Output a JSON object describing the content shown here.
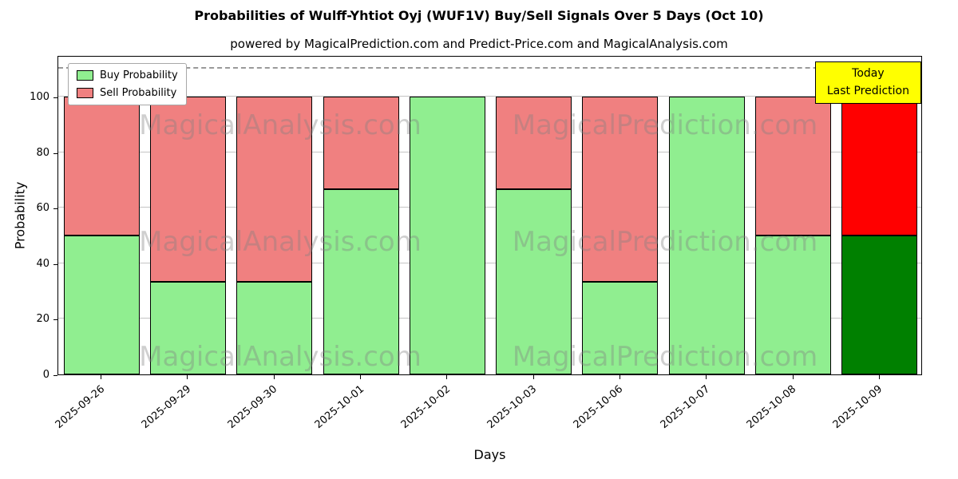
{
  "chart_data": {
    "type": "bar",
    "stacked": true,
    "title": "Probabilities of Wulff-Yhtiot Oyj (WUF1V) Buy/Sell Signals Over 5 Days (Oct 10)",
    "subtitle": "powered by MagicalPrediction.com and Predict-Price.com and MagicalAnalysis.com",
    "xlabel": "Days",
    "ylabel": "Probability",
    "ylim": [
      0,
      115
    ],
    "yticks": [
      0,
      20,
      40,
      60,
      80,
      100
    ],
    "grid": true,
    "dashed_line_y": 110,
    "legend_position": "upper left",
    "categories": [
      "2025-09-26",
      "2025-09-29",
      "2025-09-30",
      "2025-10-01",
      "2025-10-02",
      "2025-10-03",
      "2025-10-06",
      "2025-10-07",
      "2025-10-08",
      "2025-10-09"
    ],
    "series": [
      {
        "name": "Buy Probability",
        "color": "#90EE90",
        "values": [
          50,
          33.33,
          33.33,
          66.67,
          100,
          66.67,
          33.33,
          100,
          50,
          50
        ]
      },
      {
        "name": "Sell Probability",
        "color": "#F08080",
        "values": [
          50,
          66.67,
          66.67,
          33.33,
          0,
          33.33,
          66.67,
          0,
          50,
          50
        ]
      }
    ],
    "last_bar_colors": {
      "buy": "#008000",
      "sell": "#FF0000"
    },
    "annotation": {
      "lines": [
        "Today",
        "Last Prediction"
      ],
      "bg": "#FFFF00",
      "border": "#000000"
    },
    "watermarks": [
      "MagicalAnalysis.com",
      "MagicalPrediction.com"
    ]
  }
}
